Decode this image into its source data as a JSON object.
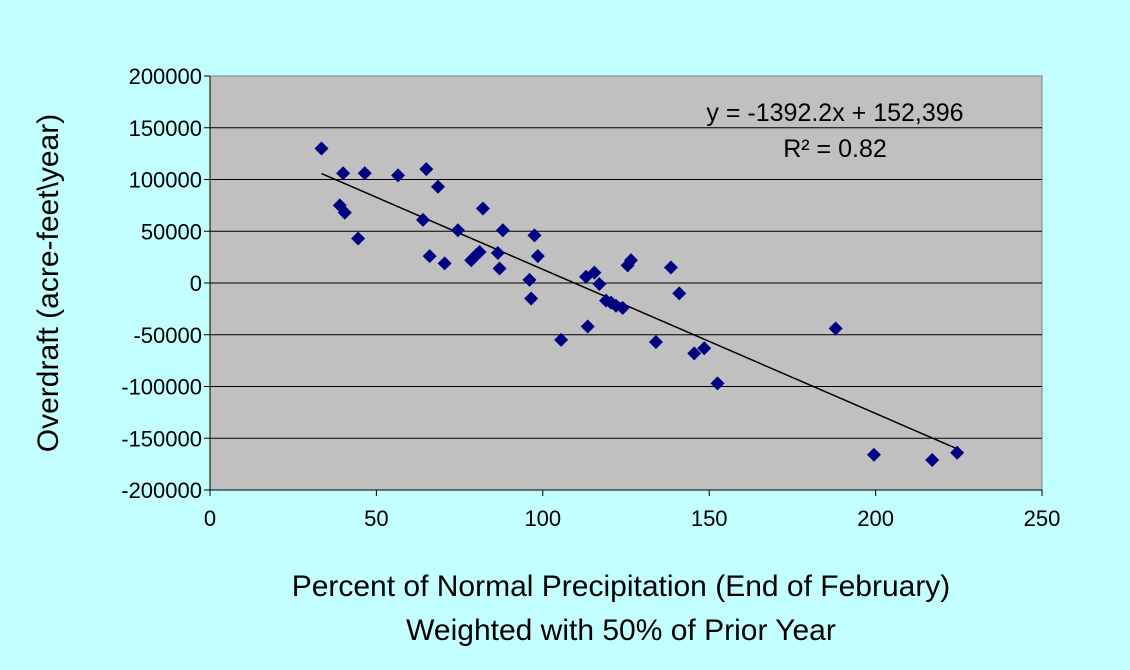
{
  "chart_data": {
    "type": "scatter",
    "title": "",
    "xlabel": [
      "Percent of Normal Precipitation (End of February)",
      "Weighted with 50% of Prior Year"
    ],
    "ylabel": "Overdraft (acre-feet\\year)",
    "xlim": [
      0,
      250
    ],
    "ylim": [
      -200000,
      200000
    ],
    "x_ticks": [
      "0",
      "50",
      "100",
      "150",
      "200",
      "250"
    ],
    "y_ticks": [
      "200000",
      "150000",
      "100000",
      "50000",
      "0",
      "-50000",
      "-100000",
      "-150000",
      "-200000"
    ],
    "grid": "horizontal",
    "colors": {
      "background": "#c4ffff",
      "plot_area": "#c0c0c0",
      "marker": "#000080",
      "trendline": "#000000",
      "gridline": "#000000"
    },
    "annotations": [
      "y = -1392.2x + 152,396",
      "R² = 0.82"
    ],
    "trendline": {
      "slope": -1392.2,
      "intercept": 152396,
      "x_range": [
        33.5,
        224.5
      ]
    },
    "points": [
      {
        "x": 33.5,
        "y": 130000
      },
      {
        "x": 39,
        "y": 75000
      },
      {
        "x": 40,
        "y": 106000
      },
      {
        "x": 40.5,
        "y": 68000
      },
      {
        "x": 44.5,
        "y": 43000
      },
      {
        "x": 46.5,
        "y": 106000
      },
      {
        "x": 56.5,
        "y": 104000
      },
      {
        "x": 64,
        "y": 61000
      },
      {
        "x": 65,
        "y": 110000
      },
      {
        "x": 66,
        "y": 26000
      },
      {
        "x": 68.5,
        "y": 93000
      },
      {
        "x": 70.5,
        "y": 19000
      },
      {
        "x": 74.5,
        "y": 51000
      },
      {
        "x": 78.5,
        "y": 22000
      },
      {
        "x": 80,
        "y": 27000
      },
      {
        "x": 81,
        "y": 30000
      },
      {
        "x": 82,
        "y": 72000
      },
      {
        "x": 86.5,
        "y": 29000
      },
      {
        "x": 87,
        "y": 14000
      },
      {
        "x": 88,
        "y": 51000
      },
      {
        "x": 96,
        "y": 3000
      },
      {
        "x": 96.5,
        "y": -15000
      },
      {
        "x": 97.5,
        "y": 46000
      },
      {
        "x": 98.5,
        "y": 26000
      },
      {
        "x": 105.5,
        "y": -55000
      },
      {
        "x": 113,
        "y": 6000
      },
      {
        "x": 113.5,
        "y": -42000
      },
      {
        "x": 115.5,
        "y": 10000
      },
      {
        "x": 117,
        "y": -1000
      },
      {
        "x": 119,
        "y": -17000
      },
      {
        "x": 120.5,
        "y": -19000
      },
      {
        "x": 122,
        "y": -22000
      },
      {
        "x": 124,
        "y": -24000
      },
      {
        "x": 125.5,
        "y": 17000
      },
      {
        "x": 126.5,
        "y": 22000
      },
      {
        "x": 134,
        "y": -57000
      },
      {
        "x": 138.5,
        "y": 15000
      },
      {
        "x": 141,
        "y": -10000
      },
      {
        "x": 145.5,
        "y": -68000
      },
      {
        "x": 148.5,
        "y": -63000
      },
      {
        "x": 152.5,
        "y": -97000
      },
      {
        "x": 188,
        "y": -44000
      },
      {
        "x": 199.5,
        "y": -166000
      },
      {
        "x": 217,
        "y": -171000
      },
      {
        "x": 224.5,
        "y": -164000
      }
    ]
  }
}
